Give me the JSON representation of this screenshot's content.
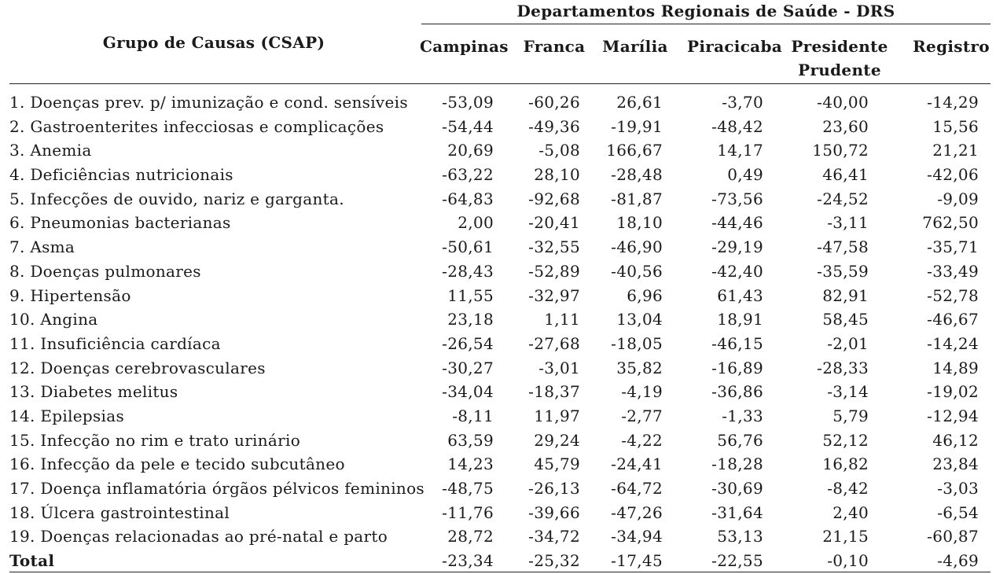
{
  "table": {
    "super_header": "Departamentos Regionais de Saúde - DRS",
    "group_header": "Grupo de Causas (CSAP)",
    "columns": [
      {
        "line1": "Campinas",
        "line2": ""
      },
      {
        "line1": "Franca",
        "line2": ""
      },
      {
        "line1": "Marília",
        "line2": ""
      },
      {
        "line1": "Piracicaba",
        "line2": ""
      },
      {
        "line1": "Presidente",
        "line2": "Prudente"
      },
      {
        "line1": "Registro",
        "line2": ""
      }
    ],
    "rows": [
      {
        "label": "1. Doenças prev. p/ imunização e cond. sensíveis",
        "values": [
          "-53,09",
          "-60,26",
          "26,61",
          "-3,70",
          "-40,00",
          "-14,29"
        ]
      },
      {
        "label": "2. Gastroenterites infecciosas e complicações",
        "values": [
          "-54,44",
          "-49,36",
          "-19,91",
          "-48,42",
          "23,60",
          "15,56"
        ]
      },
      {
        "label": "3. Anemia",
        "values": [
          "20,69",
          "-5,08",
          "166,67",
          "14,17",
          "150,72",
          "21,21"
        ]
      },
      {
        "label": "4. Deficiências nutricionais",
        "values": [
          "-63,22",
          "28,10",
          "-28,48",
          "0,49",
          "46,41",
          "-42,06"
        ]
      },
      {
        "label": "5. Infecções de ouvido, nariz e garganta.",
        "values": [
          "-64,83",
          "-92,68",
          "-81,87",
          "-73,56",
          "-24,52",
          "-9,09"
        ]
      },
      {
        "label": "6. Pneumonias bacterianas",
        "values": [
          "2,00",
          "-20,41",
          "18,10",
          "-44,46",
          "-3,11",
          "762,50"
        ]
      },
      {
        "label": "7. Asma",
        "values": [
          "-50,61",
          "-32,55",
          "-46,90",
          "-29,19",
          "-47,58",
          "-35,71"
        ]
      },
      {
        "label": "8. Doenças pulmonares",
        "values": [
          "-28,43",
          "-52,89",
          "-40,56",
          "-42,40",
          "-35,59",
          "-33,49"
        ]
      },
      {
        "label": "9. Hipertensão",
        "values": [
          "11,55",
          "-32,97",
          "6,96",
          "61,43",
          "82,91",
          "-52,78"
        ]
      },
      {
        "label": "10. Angina",
        "values": [
          "23,18",
          "1,11",
          "13,04",
          "18,91",
          "58,45",
          "-46,67"
        ]
      },
      {
        "label": "11. Insuficiência cardíaca",
        "values": [
          "-26,54",
          "-27,68",
          "-18,05",
          "-46,15",
          "-2,01",
          "-14,24"
        ]
      },
      {
        "label": "12. Doenças cerebrovasculares",
        "values": [
          "-30,27",
          "-3,01",
          "35,82",
          "-16,89",
          "-28,33",
          "14,89"
        ]
      },
      {
        "label": "13. Diabetes melitus",
        "values": [
          "-34,04",
          "-18,37",
          "-4,19",
          "-36,86",
          "-3,14",
          "-19,02"
        ]
      },
      {
        "label": "14. Epilepsias",
        "values": [
          "-8,11",
          "11,97",
          "-2,77",
          "-1,33",
          "5,79",
          "-12,94"
        ]
      },
      {
        "label": "15. Infecção no rim e trato urinário",
        "values": [
          "63,59",
          "29,24",
          "-4,22",
          "56,76",
          "52,12",
          "46,12"
        ]
      },
      {
        "label": "16. Infecção da pele e tecido subcutâneo",
        "values": [
          "14,23",
          "45,79",
          "-24,41",
          "-18,28",
          "16,82",
          "23,84"
        ]
      },
      {
        "label": "17. Doença inflamatória órgãos pélvicos femininos",
        "values": [
          "-48,75",
          "-26,13",
          "-64,72",
          "-30,69",
          "-8,42",
          "-3,03"
        ]
      },
      {
        "label": "18. Úlcera gastrointestinal",
        "values": [
          "-11,76",
          "-39,66",
          "-47,26",
          "-31,64",
          "2,40",
          "-6,54"
        ]
      },
      {
        "label": "19. Doenças relacionadas ao pré-natal e parto",
        "values": [
          "28,72",
          "-34,72",
          "-34,94",
          "53,13",
          "21,15",
          "-60,87"
        ]
      }
    ],
    "total": {
      "label": "Total",
      "values": [
        "-23,34",
        "-25,32",
        "-17,45",
        "-22,55",
        "-0,10",
        "-4,69"
      ]
    }
  }
}
